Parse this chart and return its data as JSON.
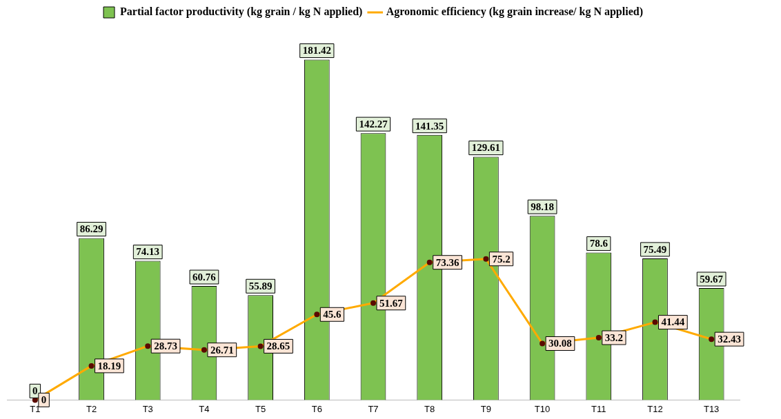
{
  "chart_data": {
    "type": "bar",
    "categories": [
      "T1",
      "T2",
      "T3",
      "T4",
      "T5",
      "T6",
      "T7",
      "T8",
      "T9",
      "T10",
      "T11",
      "T12",
      "T13"
    ],
    "series": [
      {
        "name": "Partial factor productivity (kg grain / kg N applied)",
        "color": "#7ec251",
        "values": [
          0,
          86.29,
          74.13,
          60.76,
          55.89,
          181.42,
          142.27,
          141.35,
          129.61,
          98.18,
          78.6,
          75.49,
          59.67
        ]
      },
      {
        "name": "Agronomic efficiency (kg grain increase/ kg N applied)",
        "type": "line",
        "color": "#ffaa00",
        "values": [
          0,
          18.19,
          28.73,
          26.71,
          28.65,
          45.6,
          51.67,
          73.36,
          75.2,
          30.08,
          33.2,
          41.44,
          32.43
        ]
      }
    ],
    "data_labels": true,
    "legend": "top",
    "marker": "circle",
    "grid": false
  }
}
